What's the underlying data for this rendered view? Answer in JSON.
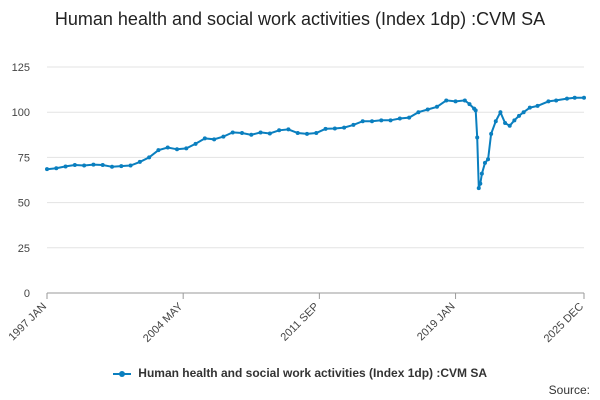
{
  "chart_data": {
    "type": "line",
    "title": "Human health and social work activities (Index 1dp) :CVM SA",
    "xlabel": "",
    "ylabel": "",
    "ylim": [
      0,
      125
    ],
    "yticks": [
      0,
      25,
      50,
      75,
      100,
      125
    ],
    "xlim": [
      "1997 JAN",
      "2025 DEC"
    ],
    "xtick_labels": [
      "1997 JAN",
      "2004 MAY",
      "2011 SEP",
      "2019 JAN",
      "2025 DEC"
    ],
    "grid": true,
    "legend_position": "bottom",
    "series": [
      {
        "name": "Human health and social work activities (Index 1dp) :CVM SA",
        "color": "#0a7fbf",
        "points": [
          [
            "1997 JAN",
            68.5
          ],
          [
            "1997 JUL",
            69.0
          ],
          [
            "1998 JAN",
            70.0
          ],
          [
            "1998 JUL",
            70.8
          ],
          [
            "1999 JAN",
            70.5
          ],
          [
            "1999 JUL",
            71.0
          ],
          [
            "2000 JAN",
            70.8
          ],
          [
            "2000 JUL",
            69.8
          ],
          [
            "2001 JAN",
            70.2
          ],
          [
            "2001 JUL",
            70.5
          ],
          [
            "2002 JAN",
            72.5
          ],
          [
            "2002 JUL",
            75.0
          ],
          [
            "2003 JAN",
            79.0
          ],
          [
            "2003 JUL",
            80.5
          ],
          [
            "2004 JAN",
            79.5
          ],
          [
            "2004 JUL",
            80.0
          ],
          [
            "2005 JAN",
            82.5
          ],
          [
            "2005 JUL",
            85.5
          ],
          [
            "2006 JAN",
            85.0
          ],
          [
            "2006 JUL",
            86.5
          ],
          [
            "2007 JAN",
            88.8
          ],
          [
            "2007 JUL",
            88.5
          ],
          [
            "2008 JAN",
            87.5
          ],
          [
            "2008 JUL",
            88.8
          ],
          [
            "2009 JAN",
            88.2
          ],
          [
            "2009 JUL",
            90.0
          ],
          [
            "2010 JAN",
            90.5
          ],
          [
            "2010 JUL",
            88.5
          ],
          [
            "2011 JAN",
            88.0
          ],
          [
            "2011 JUL",
            88.5
          ],
          [
            "2012 JAN",
            90.8
          ],
          [
            "2012 JUL",
            91.0
          ],
          [
            "2013 JAN",
            91.5
          ],
          [
            "2013 JUL",
            93.0
          ],
          [
            "2014 JAN",
            95.0
          ],
          [
            "2014 JUL",
            95.0
          ],
          [
            "2015 JAN",
            95.5
          ],
          [
            "2015 JUL",
            95.5
          ],
          [
            "2016 JAN",
            96.5
          ],
          [
            "2016 JUL",
            97.0
          ],
          [
            "2017 JAN",
            100.0
          ],
          [
            "2017 JUL",
            101.5
          ],
          [
            "2018 JAN",
            103.0
          ],
          [
            "2018 JUL",
            106.5
          ],
          [
            "2019 JAN",
            106.0
          ],
          [
            "2019 JUL",
            106.5
          ],
          [
            "2019 OCT",
            104.5
          ],
          [
            "2020 JAN",
            102.0
          ],
          [
            "2020 FEB",
            101.0
          ],
          [
            "2020 MAR",
            86.0
          ],
          [
            "2020 APR",
            58.0
          ],
          [
            "2020 MAY",
            60.5
          ],
          [
            "2020 JUN",
            66.0
          ],
          [
            "2020 AUG",
            72.0
          ],
          [
            "2020 OCT",
            74.0
          ],
          [
            "2020 DEC",
            88.0
          ],
          [
            "2021 MAR",
            95.0
          ],
          [
            "2021 JUN",
            100.0
          ],
          [
            "2021 SEP",
            94.0
          ],
          [
            "2021 DEC",
            92.5
          ],
          [
            "2022 MAR",
            95.5
          ],
          [
            "2022 JUN",
            98.0
          ],
          [
            "2022 SEP",
            100.0
          ],
          [
            "2023 JAN",
            102.5
          ],
          [
            "2023 JUN",
            103.5
          ],
          [
            "2024 JAN",
            106.0
          ],
          [
            "2024 JUN",
            106.5
          ],
          [
            "2025 JAN",
            107.5
          ],
          [
            "2025 JUN",
            108.0
          ],
          [
            "2025 DEC",
            108.0
          ]
        ]
      }
    ]
  },
  "legend": {
    "label": "Human health and social work activities (Index 1dp) :CVM SA"
  },
  "source": {
    "label": "Source:"
  }
}
